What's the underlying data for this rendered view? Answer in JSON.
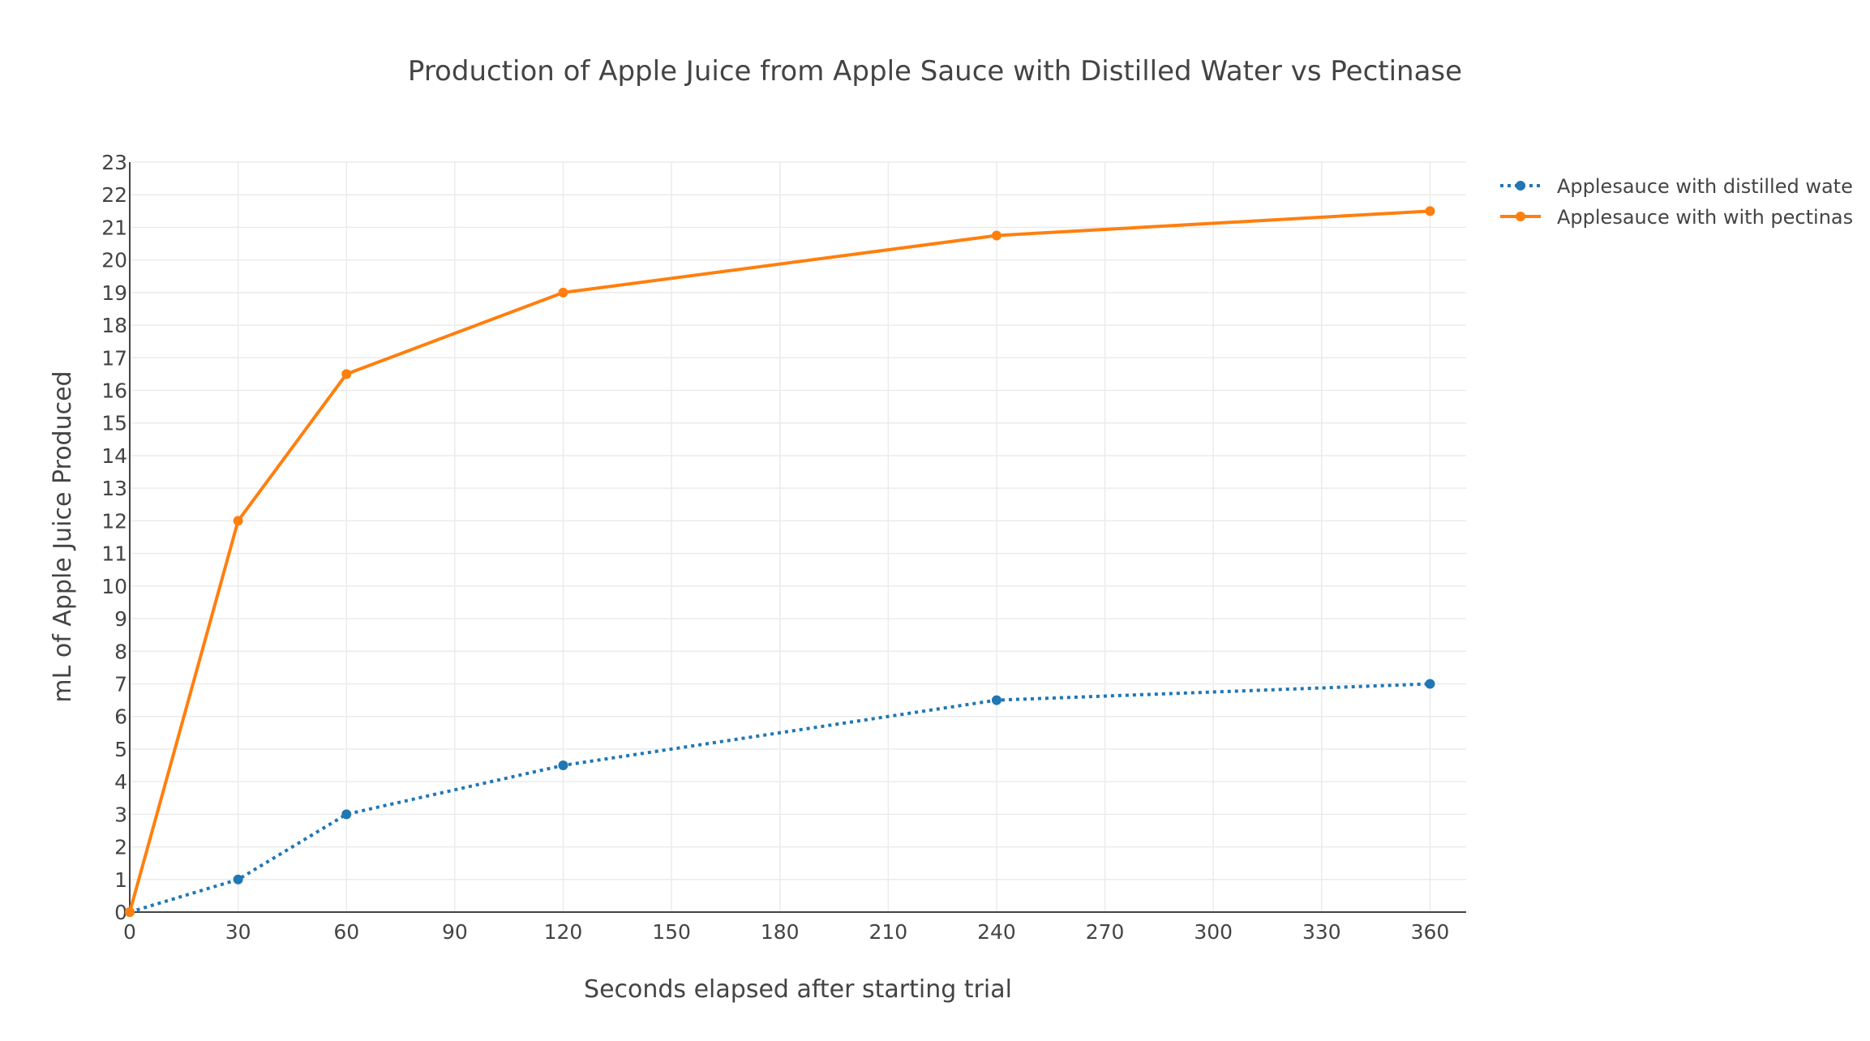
{
  "chart_data": {
    "type": "line",
    "title": "Production of Apple Juice from Apple Sauce with Distilled Water vs Pectinase",
    "xlabel": "Seconds elapsed after starting trial",
    "ylabel": "mL of Apple Juice Produced",
    "xlim": [
      0,
      370
    ],
    "ylim": [
      0,
      23
    ],
    "xticks": [
      0,
      30,
      60,
      90,
      120,
      150,
      180,
      210,
      240,
      270,
      300,
      330,
      360
    ],
    "yticks": [
      0,
      1,
      2,
      3,
      4,
      5,
      6,
      7,
      8,
      9,
      10,
      11,
      12,
      13,
      14,
      15,
      16,
      17,
      18,
      19,
      20,
      21,
      22,
      23
    ],
    "grid": true,
    "legend_position": "top-right",
    "series": [
      {
        "name": "Applesauce with distilled wate",
        "color": "#1f77b4",
        "dash": "dot",
        "x": [
          0,
          30,
          60,
          120,
          240,
          360
        ],
        "y": [
          0,
          1,
          3,
          4.5,
          6.5,
          7
        ]
      },
      {
        "name": "Applesauce with with pectinas",
        "color": "#ff7f0e",
        "dash": "solid",
        "x": [
          0,
          30,
          60,
          120,
          240,
          360
        ],
        "y": [
          0,
          12,
          16.5,
          19,
          20.75,
          21.5
        ]
      }
    ]
  }
}
